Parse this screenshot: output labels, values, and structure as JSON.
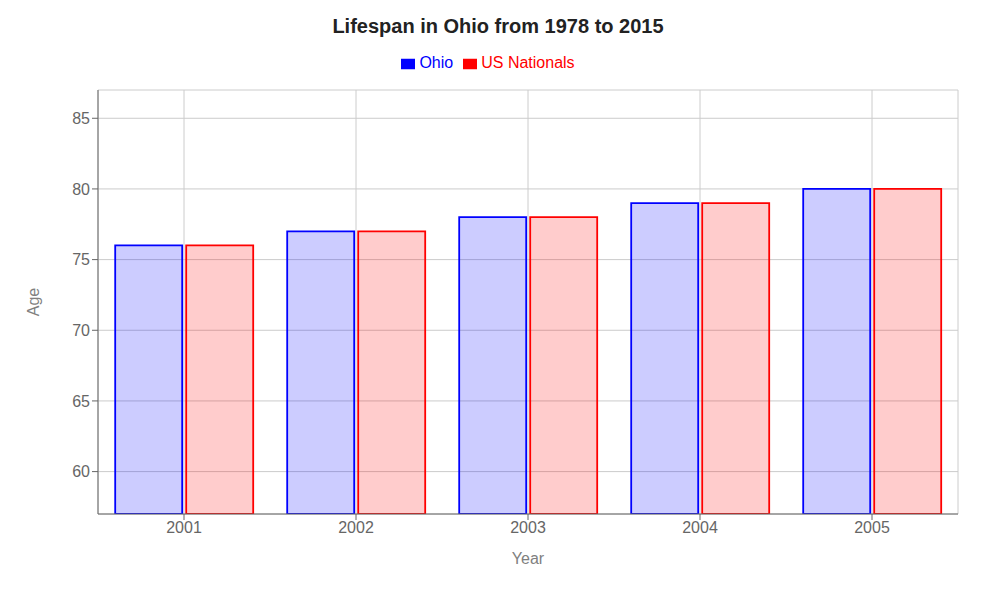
{
  "chart_data": {
    "type": "bar",
    "title": "Lifespan in Ohio from 1978 to 2015",
    "x_label": "Year",
    "y_label": "Age",
    "categories": [
      "2001",
      "2002",
      "2003",
      "2004",
      "2005"
    ],
    "series": [
      {
        "name": "Ohio",
        "color": "#0000ff",
        "values": [
          76,
          77,
          78,
          79,
          80
        ]
      },
      {
        "name": "US Nationals",
        "color": "#ff0000",
        "values": [
          76,
          77,
          78,
          79,
          80
        ]
      }
    ],
    "ylim": [
      57,
      87
    ],
    "yticks": [
      60,
      65,
      70,
      75,
      80,
      85
    ],
    "grid": true,
    "legend": "top"
  }
}
